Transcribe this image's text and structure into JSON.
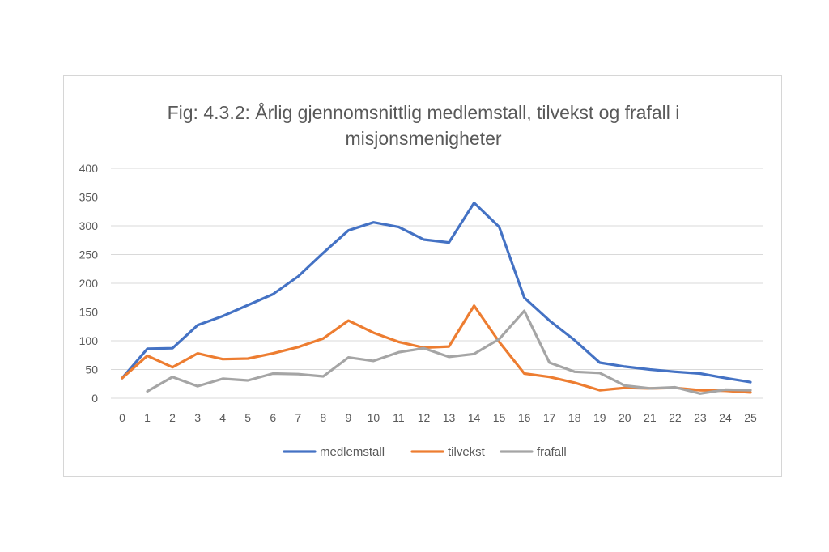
{
  "chart_data": {
    "type": "line",
    "title_lines": [
      "Fig: 4.3.2: Årlig gjennomsnittlig medlemstall, tilvekst og frafall i",
      "misjonsmenigheter"
    ],
    "xlabel": "",
    "ylabel": "",
    "categories": [
      "0",
      "1",
      "2",
      "3",
      "4",
      "5",
      "6",
      "7",
      "8",
      "9",
      "10",
      "11",
      "12",
      "13",
      "14",
      "15",
      "16",
      "17",
      "18",
      "19",
      "20",
      "21",
      "22",
      "23",
      "24",
      "25"
    ],
    "yticks": [
      "0",
      "50",
      "100",
      "150",
      "200",
      "250",
      "300",
      "350",
      "400"
    ],
    "ylim": [
      0,
      400
    ],
    "grid": true,
    "legend_position": "bottom",
    "series": [
      {
        "name": "medlemstall",
        "color": "#4472c4",
        "values": [
          35,
          86,
          87,
          127,
          143,
          162,
          181,
          212,
          253,
          292,
          306,
          298,
          276,
          271,
          340,
          298,
          175,
          135,
          101,
          62,
          55,
          50,
          46,
          43,
          35,
          28
        ]
      },
      {
        "name": "tilvekst",
        "color": "#ed7d31",
        "values": [
          35,
          74,
          54,
          78,
          68,
          69,
          78,
          89,
          104,
          135,
          114,
          98,
          88,
          90,
          161,
          98,
          43,
          37,
          27,
          14,
          18,
          17,
          18,
          14,
          13,
          10
        ]
      },
      {
        "name": "frafall",
        "color": "#a5a5a5",
        "values": [
          null,
          12,
          37,
          21,
          34,
          31,
          43,
          42,
          38,
          71,
          65,
          80,
          87,
          72,
          77,
          103,
          152,
          62,
          46,
          44,
          22,
          17,
          19,
          8,
          15,
          14
        ]
      }
    ]
  }
}
